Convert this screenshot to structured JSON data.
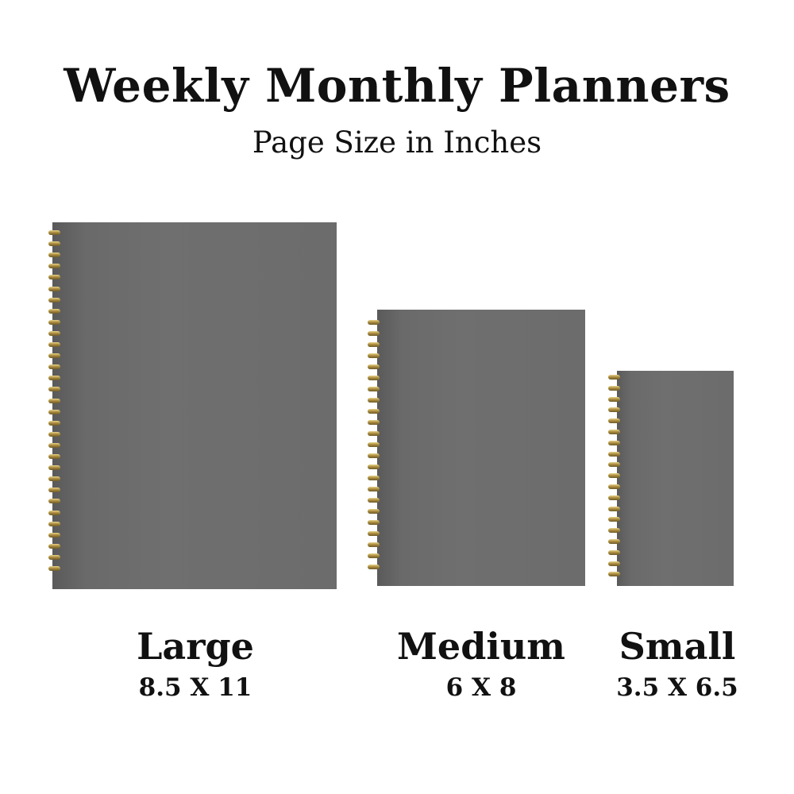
{
  "title": "Weekly Monthly Planners",
  "subtitle": "Page Size in Inches",
  "colors": {
    "cover": "#6c6c6c",
    "spiral": "#c9ad5c",
    "text": "#111111"
  },
  "planners": [
    {
      "name": "Large",
      "size": "8.5 X 11"
    },
    {
      "name": "Medium",
      "size": "6 X 8"
    },
    {
      "name": "Small",
      "size": "3.5 X 6.5"
    }
  ]
}
